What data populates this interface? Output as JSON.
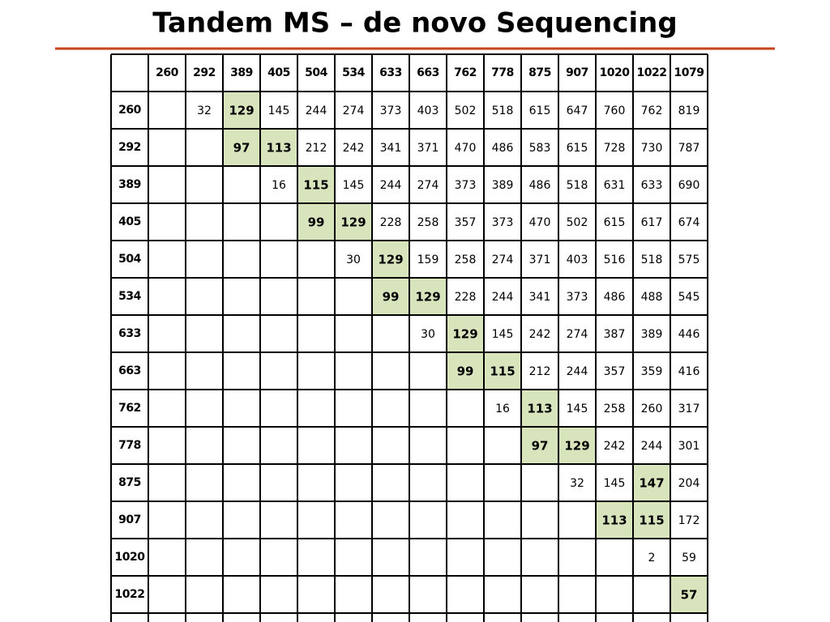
{
  "header": {
    "title": "Tandem MS – de novo Sequencing"
  },
  "table": {
    "columns": [
      260,
      292,
      389,
      405,
      504,
      534,
      633,
      663,
      762,
      778,
      875,
      907,
      1020,
      1022,
      1079
    ],
    "highlight_fill": "#d8e4bc",
    "highlight_text": "#c00000",
    "rows": [
      {
        "label": 260,
        "cells": [
          null,
          32,
          {
            "value": 129,
            "highlight": true
          },
          145,
          244,
          274,
          373,
          403,
          502,
          518,
          615,
          647,
          760,
          762,
          819
        ]
      },
      {
        "label": 292,
        "cells": [
          null,
          null,
          {
            "value": 97,
            "highlight": true
          },
          {
            "value": 113,
            "highlight": true
          },
          212,
          242,
          341,
          371,
          470,
          486,
          583,
          615,
          728,
          730,
          787
        ]
      },
      {
        "label": 389,
        "cells": [
          null,
          null,
          null,
          16,
          {
            "value": 115,
            "highlight": true
          },
          145,
          244,
          274,
          373,
          389,
          486,
          518,
          631,
          633,
          690
        ]
      },
      {
        "label": 405,
        "cells": [
          null,
          null,
          null,
          null,
          {
            "value": 99,
            "highlight": true
          },
          {
            "value": 129,
            "highlight": true
          },
          228,
          258,
          357,
          373,
          470,
          502,
          615,
          617,
          674
        ]
      },
      {
        "label": 504,
        "cells": [
          null,
          null,
          null,
          null,
          null,
          30,
          {
            "value": 129,
            "highlight": true
          },
          159,
          258,
          274,
          371,
          403,
          516,
          518,
          575
        ]
      },
      {
        "label": 534,
        "cells": [
          null,
          null,
          null,
          null,
          null,
          null,
          {
            "value": 99,
            "highlight": true
          },
          {
            "value": 129,
            "highlight": true
          },
          228,
          244,
          341,
          373,
          486,
          488,
          545
        ]
      },
      {
        "label": 633,
        "cells": [
          null,
          null,
          null,
          null,
          null,
          null,
          null,
          30,
          {
            "value": 129,
            "highlight": true
          },
          145,
          242,
          274,
          387,
          389,
          446
        ]
      },
      {
        "label": 663,
        "cells": [
          null,
          null,
          null,
          null,
          null,
          null,
          null,
          null,
          {
            "value": 99,
            "highlight": true
          },
          {
            "value": 115,
            "highlight": true
          },
          212,
          244,
          357,
          359,
          416
        ]
      },
      {
        "label": 762,
        "cells": [
          null,
          null,
          null,
          null,
          null,
          null,
          null,
          null,
          null,
          16,
          {
            "value": 113,
            "highlight": true
          },
          145,
          258,
          260,
          317
        ]
      },
      {
        "label": 778,
        "cells": [
          null,
          null,
          null,
          null,
          null,
          null,
          null,
          null,
          null,
          null,
          {
            "value": 97,
            "highlight": true
          },
          {
            "value": 129,
            "highlight": true
          },
          242,
          244,
          301
        ]
      },
      {
        "label": 875,
        "cells": [
          null,
          null,
          null,
          null,
          null,
          null,
          null,
          null,
          null,
          null,
          null,
          32,
          145,
          {
            "value": 147,
            "highlight": true
          },
          204
        ]
      },
      {
        "label": 907,
        "cells": [
          null,
          null,
          null,
          null,
          null,
          null,
          null,
          null,
          null,
          null,
          null,
          null,
          {
            "value": 113,
            "highlight": true
          },
          {
            "value": 115,
            "highlight": true
          },
          172
        ]
      },
      {
        "label": 1020,
        "cells": [
          null,
          null,
          null,
          null,
          null,
          null,
          null,
          null,
          null,
          null,
          null,
          null,
          null,
          2,
          59
        ]
      },
      {
        "label": 1022,
        "cells": [
          null,
          null,
          null,
          null,
          null,
          null,
          null,
          null,
          null,
          null,
          null,
          null,
          null,
          null,
          {
            "value": 57,
            "highlight": true
          }
        ]
      }
    ]
  }
}
